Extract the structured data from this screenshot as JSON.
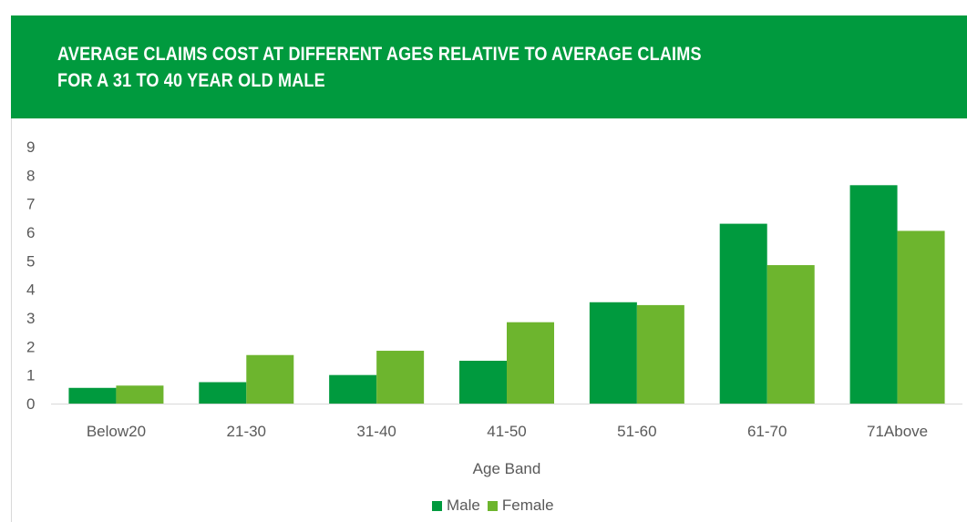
{
  "header": {
    "title_line1": "AVERAGE CLAIMS COST AT DIFFERENT AGES RELATIVE TO AVERAGE CLAIMS",
    "title_line2": "FOR A 31 TO 40 YEAR OLD MALE"
  },
  "colors": {
    "banner": "#009a3e",
    "male": "#009a3e",
    "female": "#6db52e",
    "axis_text": "#595959",
    "axis_line": "#d9d9d9"
  },
  "chart_data": {
    "type": "bar",
    "title": "AVERAGE CLAIMS COST AT DIFFERENT AGES RELATIVE TO AVERAGE CLAIMS FOR A 31 TO 40 YEAR OLD MALE",
    "xlabel": "Age Band",
    "ylabel": "",
    "categories": [
      "Below20",
      "21-30",
      "31-40",
      "41-50",
      "51-60",
      "61-70",
      "71Above"
    ],
    "series": [
      {
        "name": "Male",
        "values": [
          0.55,
          0.75,
          1.0,
          1.5,
          3.55,
          6.3,
          7.65
        ]
      },
      {
        "name": "Female",
        "values": [
          0.63,
          1.7,
          1.85,
          2.85,
          3.45,
          4.85,
          6.05
        ]
      }
    ],
    "ylim": [
      0,
      9
    ],
    "yticks": [
      0,
      1,
      2,
      3,
      4,
      5,
      6,
      7,
      8,
      9
    ],
    "grid": false,
    "legend": "bottom"
  }
}
